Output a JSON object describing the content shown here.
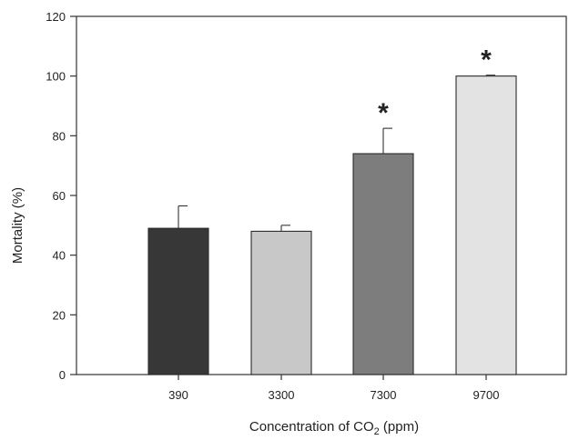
{
  "chart_data": {
    "type": "bar",
    "title": "",
    "xlabel": "Concentration of CO",
    "xlabel_subscript": "2",
    "xlabel_suffix": " (ppm)",
    "ylabel": "Mortality (%)",
    "ylim": [
      0,
      120
    ],
    "yticks": [
      0,
      20,
      40,
      60,
      80,
      100,
      120
    ],
    "grid": false,
    "legend": "none",
    "categories": [
      "390",
      "3300",
      "7300",
      "9700"
    ],
    "values": [
      49,
      48,
      74,
      100
    ],
    "error_upper": [
      7.5,
      2,
      8.5,
      0.3
    ],
    "significance": [
      "",
      "",
      "*",
      "*"
    ],
    "bar_colors": [
      "#373737",
      "#c8c8c8",
      "#7d7d7d",
      "#e3e3e3"
    ]
  }
}
